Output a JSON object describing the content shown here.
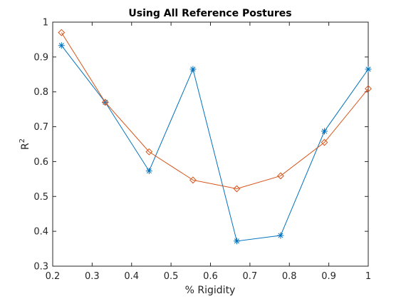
{
  "chart_data": {
    "type": "line",
    "title": "Using All Reference Postures",
    "xlabel": "% Rigidity",
    "ylabel_base": "R",
    "ylabel_sup": "2",
    "xlim": [
      0.2,
      1.0
    ],
    "ylim": [
      0.3,
      1.0
    ],
    "xticks": [
      0.2,
      0.3,
      0.4,
      0.5,
      0.6,
      0.7,
      0.8,
      0.9,
      1.0
    ],
    "xtick_labels": [
      "0.2",
      "0.3",
      "0.4",
      "0.5",
      "0.6",
      "0.7",
      "0.8",
      "0.9",
      "1"
    ],
    "yticks": [
      0.3,
      0.4,
      0.5,
      0.6,
      0.7,
      0.8,
      0.9,
      1.0
    ],
    "ytick_labels": [
      "0.3",
      "0.4",
      "0.5",
      "0.6",
      "0.7",
      "0.8",
      "0.9",
      "1"
    ],
    "grid": false,
    "x": [
      0.2222,
      0.3333,
      0.4444,
      0.5556,
      0.6667,
      0.7778,
      0.8889,
      1.0
    ],
    "series": [
      {
        "marker": "asterisk",
        "color": "#0072BD",
        "values": [
          0.933,
          0.77,
          0.573,
          0.865,
          0.372,
          0.388,
          0.687,
          0.865
        ]
      },
      {
        "marker": "diamond",
        "color": "#D95319",
        "values": [
          0.97,
          0.77,
          0.628,
          0.547,
          0.522,
          0.559,
          0.655,
          0.809
        ]
      }
    ],
    "axis_color": "#262626"
  }
}
